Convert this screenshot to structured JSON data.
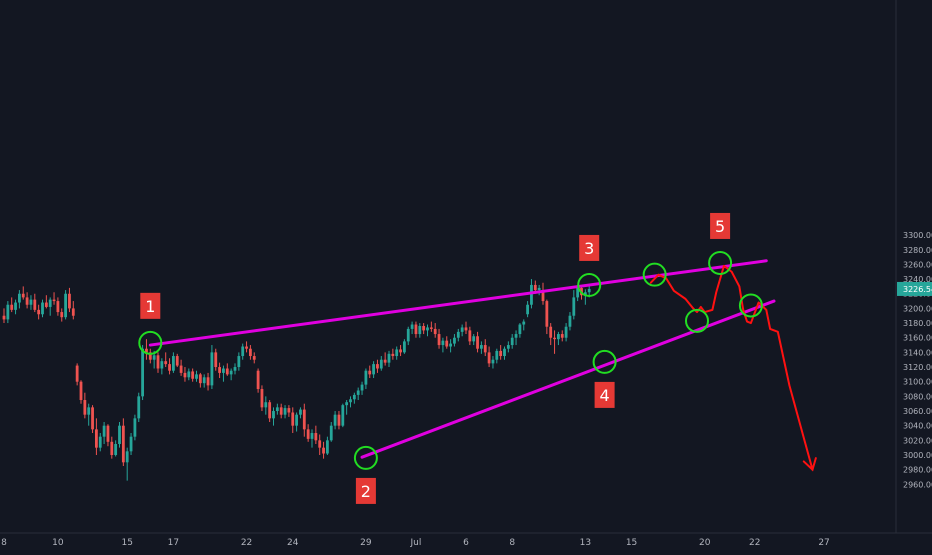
{
  "chart_data": {
    "type": "candlestick",
    "title": "",
    "xlabel": "",
    "ylabel": "",
    "ylim": [
      2950,
      3305
    ],
    "grid": false,
    "colors": {
      "background": "#131722",
      "up": "#26a69a",
      "down": "#ef5350",
      "trendline": "#e000e0",
      "projection": "#ff1111",
      "marker_ring": "#22dd22",
      "marker_box": "#e53935",
      "price_tag": "#26a69a",
      "axis_text": "#b2b5be"
    },
    "y_ticks": [
      2960,
      2980,
      3000,
      3020,
      3040,
      3060,
      3080,
      3100,
      3120,
      3140,
      3160,
      3180,
      3200,
      3220,
      3240,
      3260,
      3280,
      3300
    ],
    "y_tick_labels": [
      "2960.00",
      "2980.00",
      "3000.00",
      "3020.00",
      "3040.00",
      "3060.00",
      "3080.00",
      "3100.00",
      "3120.00",
      "3140.00",
      "3160.00",
      "3180.00",
      "3200.00",
      "3220.00",
      "3240.00",
      "3260.00",
      "3280.00",
      "3300.00"
    ],
    "x_ticks": [
      {
        "label": "8",
        "bar": 0
      },
      {
        "label": "10",
        "bar": 14
      },
      {
        "label": "15",
        "bar": 32
      },
      {
        "label": "17",
        "bar": 44
      },
      {
        "label": "22",
        "bar": 63
      },
      {
        "label": "24",
        "bar": 75
      },
      {
        "label": "29",
        "bar": 94
      },
      {
        "label": "Jul",
        "bar": 107
      },
      {
        "label": "6",
        "bar": 120
      },
      {
        "label": "8",
        "bar": 132
      },
      {
        "label": "13",
        "bar": 151
      },
      {
        "label": "15",
        "bar": 163
      },
      {
        "label": "20",
        "bar": 182
      },
      {
        "label": "22",
        "bar": 195
      },
      {
        "label": "27",
        "bar": 213
      }
    ],
    "last_price_label": "3226.54",
    "last_price": 3226.54,
    "candles": [
      [
        3190,
        3200,
        3180,
        3185
      ],
      [
        3185,
        3210,
        3180,
        3205
      ],
      [
        3205,
        3215,
        3195,
        3198
      ],
      [
        3198,
        3212,
        3192,
        3208
      ],
      [
        3208,
        3225,
        3200,
        3220
      ],
      [
        3220,
        3230,
        3212,
        3215
      ],
      [
        3215,
        3222,
        3200,
        3205
      ],
      [
        3205,
        3218,
        3198,
        3212
      ],
      [
        3212,
        3220,
        3195,
        3198
      ],
      [
        3198,
        3205,
        3185,
        3192
      ],
      [
        3192,
        3212,
        3188,
        3208
      ],
      [
        3208,
        3218,
        3200,
        3202
      ],
      [
        3202,
        3215,
        3190,
        3212
      ],
      [
        3212,
        3222,
        3205,
        3210
      ],
      [
        3210,
        3215,
        3190,
        3195
      ],
      [
        3195,
        3200,
        3182,
        3188
      ],
      [
        3188,
        3225,
        3185,
        3220
      ],
      [
        3220,
        3228,
        3195,
        3200
      ],
      [
        3200,
        3210,
        3185,
        3190
      ],
      [
        3122,
        3125,
        3095,
        3100
      ],
      [
        3100,
        3102,
        3070,
        3075
      ],
      [
        3075,
        3085,
        3050,
        3055
      ],
      [
        3055,
        3070,
        3040,
        3065
      ],
      [
        3065,
        3068,
        3030,
        3035
      ],
      [
        3035,
        3050,
        3000,
        3010
      ],
      [
        3010,
        3030,
        3005,
        3025
      ],
      [
        3025,
        3045,
        3015,
        3040
      ],
      [
        3040,
        3042,
        3012,
        3018
      ],
      [
        3018,
        3025,
        2995,
        3000
      ],
      [
        3000,
        3020,
        2998,
        3015
      ],
      [
        3015,
        3045,
        3010,
        3040
      ],
      [
        3040,
        3050,
        2985,
        2990
      ],
      [
        2990,
        3010,
        2965,
        3005
      ],
      [
        3005,
        3030,
        3000,
        3025
      ],
      [
        3025,
        3055,
        3020,
        3050
      ],
      [
        3050,
        3085,
        3045,
        3080
      ],
      [
        3080,
        3150,
        3075,
        3145
      ],
      [
        3145,
        3158,
        3130,
        3140
      ],
      [
        3140,
        3145,
        3125,
        3130
      ],
      [
        3130,
        3142,
        3118,
        3136
      ],
      [
        3136,
        3140,
        3112,
        3118
      ],
      [
        3118,
        3132,
        3110,
        3128
      ],
      [
        3128,
        3140,
        3120,
        3124
      ],
      [
        3124,
        3132,
        3110,
        3115
      ],
      [
        3115,
        3140,
        3112,
        3135
      ],
      [
        3135,
        3138,
        3120,
        3122
      ],
      [
        3122,
        3130,
        3108,
        3112
      ],
      [
        3112,
        3120,
        3100,
        3106
      ],
      [
        3106,
        3118,
        3102,
        3114
      ],
      [
        3114,
        3118,
        3100,
        3104
      ],
      [
        3104,
        3115,
        3100,
        3110
      ],
      [
        3110,
        3112,
        3092,
        3098
      ],
      [
        3098,
        3110,
        3092,
        3106
      ],
      [
        3106,
        3112,
        3088,
        3095
      ],
      [
        3095,
        3150,
        3090,
        3140
      ],
      [
        3140,
        3145,
        3115,
        3120
      ],
      [
        3120,
        3126,
        3105,
        3112
      ],
      [
        3112,
        3122,
        3100,
        3118
      ],
      [
        3118,
        3125,
        3108,
        3110
      ],
      [
        3110,
        3118,
        3102,
        3115
      ],
      [
        3115,
        3125,
        3110,
        3120
      ],
      [
        3120,
        3140,
        3115,
        3135
      ],
      [
        3135,
        3152,
        3130,
        3148
      ],
      [
        3148,
        3155,
        3140,
        3145
      ],
      [
        3145,
        3150,
        3130,
        3135
      ],
      [
        3135,
        3140,
        3125,
        3130
      ],
      [
        3115,
        3118,
        3085,
        3090
      ],
      [
        3090,
        3095,
        3060,
        3065
      ],
      [
        3065,
        3080,
        3055,
        3072
      ],
      [
        3072,
        3075,
        3045,
        3050
      ],
      [
        3050,
        3065,
        3040,
        3060
      ],
      [
        3060,
        3070,
        3055,
        3065
      ],
      [
        3065,
        3070,
        3050,
        3055
      ],
      [
        3055,
        3068,
        3050,
        3064
      ],
      [
        3064,
        3068,
        3052,
        3058
      ],
      [
        3058,
        3065,
        3030,
        3040
      ],
      [
        3040,
        3058,
        3032,
        3055
      ],
      [
        3055,
        3065,
        3050,
        3062
      ],
      [
        3062,
        3070,
        3025,
        3035
      ],
      [
        3035,
        3042,
        3018,
        3022
      ],
      [
        3022,
        3035,
        3010,
        3030
      ],
      [
        3030,
        3040,
        3015,
        3020
      ],
      [
        3020,
        3028,
        3000,
        3010
      ],
      [
        3010,
        3018,
        2995,
        3002
      ],
      [
        3002,
        3025,
        3000,
        3020
      ],
      [
        3020,
        3045,
        3018,
        3040
      ],
      [
        3040,
        3060,
        3035,
        3055
      ],
      [
        3055,
        3060,
        3035,
        3040
      ],
      [
        3040,
        3070,
        3038,
        3068
      ],
      [
        3068,
        3075,
        3055,
        3072
      ],
      [
        3072,
        3080,
        3065,
        3076
      ],
      [
        3076,
        3085,
        3070,
        3082
      ],
      [
        3082,
        3092,
        3075,
        3088
      ],
      [
        3088,
        3100,
        3082,
        3096
      ],
      [
        3096,
        3118,
        3090,
        3115
      ],
      [
        3115,
        3122,
        3105,
        3110
      ],
      [
        3110,
        3128,
        3105,
        3124
      ],
      [
        3124,
        3130,
        3112,
        3118
      ],
      [
        3118,
        3135,
        3115,
        3130
      ],
      [
        3130,
        3140,
        3122,
        3126
      ],
      [
        3126,
        3142,
        3120,
        3138
      ],
      [
        3138,
        3145,
        3130,
        3135
      ],
      [
        3135,
        3148,
        3130,
        3144
      ],
      [
        3144,
        3150,
        3135,
        3140
      ],
      [
        3140,
        3158,
        3138,
        3155
      ],
      [
        3155,
        3175,
        3150,
        3172
      ],
      [
        3172,
        3182,
        3165,
        3178
      ],
      [
        3178,
        3182,
        3160,
        3165
      ],
      [
        3165,
        3180,
        3160,
        3176
      ],
      [
        3176,
        3180,
        3165,
        3170
      ],
      [
        3170,
        3178,
        3162,
        3174
      ],
      [
        3174,
        3182,
        3168,
        3172
      ],
      [
        3172,
        3180,
        3160,
        3165
      ],
      [
        3165,
        3172,
        3145,
        3150
      ],
      [
        3150,
        3160,
        3140,
        3156
      ],
      [
        3156,
        3162,
        3145,
        3148
      ],
      [
        3148,
        3158,
        3140,
        3152
      ],
      [
        3152,
        3165,
        3148,
        3160
      ],
      [
        3160,
        3172,
        3155,
        3168
      ],
      [
        3168,
        3178,
        3162,
        3174
      ],
      [
        3174,
        3182,
        3165,
        3170
      ],
      [
        3170,
        3175,
        3150,
        3155
      ],
      [
        3155,
        3165,
        3150,
        3162
      ],
      [
        3162,
        3168,
        3140,
        3145
      ],
      [
        3145,
        3155,
        3138,
        3150
      ],
      [
        3150,
        3158,
        3135,
        3140
      ],
      [
        3140,
        3148,
        3120,
        3125
      ],
      [
        3125,
        3135,
        3118,
        3130
      ],
      [
        3130,
        3145,
        3125,
        3142
      ],
      [
        3142,
        3150,
        3130,
        3135
      ],
      [
        3135,
        3148,
        3130,
        3145
      ],
      [
        3145,
        3155,
        3140,
        3150
      ],
      [
        3150,
        3165,
        3145,
        3160
      ],
      [
        3160,
        3170,
        3150,
        3165
      ],
      [
        3165,
        3180,
        3160,
        3178
      ],
      [
        3178,
        3185,
        3170,
        3182
      ],
      [
        3192,
        3210,
        3188,
        3205
      ],
      [
        3205,
        3240,
        3200,
        3232
      ],
      [
        3232,
        3238,
        3220,
        3225
      ],
      [
        3225,
        3232,
        3218,
        3228
      ],
      [
        3225,
        3235,
        3205,
        3210
      ],
      [
        3210,
        3212,
        3165,
        3175
      ],
      [
        3175,
        3180,
        3150,
        3160
      ],
      [
        3160,
        3170,
        3138,
        3158
      ],
      [
        3158,
        3168,
        3150,
        3165
      ],
      [
        3165,
        3170,
        3155,
        3160
      ],
      [
        3160,
        3180,
        3155,
        3175
      ],
      [
        3175,
        3195,
        3170,
        3190
      ],
      [
        3190,
        3225,
        3185,
        3215
      ],
      [
        3215,
        3232,
        3210,
        3228
      ],
      [
        3228,
        3232,
        3212,
        3218
      ],
      [
        3218,
        3226,
        3205,
        3222
      ],
      [
        3222,
        3232,
        3215,
        3226.54
      ]
    ],
    "trendlines": [
      {
        "from": {
          "bar": 38,
          "value": 3150
        },
        "to": {
          "bar": 198,
          "value": 3265
        }
      },
      {
        "from": {
          "bar": 93,
          "value": 2997
        },
        "to": {
          "bar": 200,
          "value": 3210
        }
      }
    ],
    "projection_path": [
      {
        "bar": 168,
        "value": 3235
      },
      {
        "bar": 170,
        "value": 3246
      },
      {
        "bar": 172,
        "value": 3241
      },
      {
        "bar": 174,
        "value": 3224
      },
      {
        "bar": 177,
        "value": 3213
      },
      {
        "bar": 179,
        "value": 3200
      },
      {
        "bar": 180,
        "value": 3195
      },
      {
        "bar": 181,
        "value": 3202
      },
      {
        "bar": 182,
        "value": 3195
      },
      {
        "bar": 184,
        "value": 3198
      },
      {
        "bar": 185,
        "value": 3222
      },
      {
        "bar": 187,
        "value": 3258
      },
      {
        "bar": 189,
        "value": 3250
      },
      {
        "bar": 191,
        "value": 3230
      },
      {
        "bar": 192,
        "value": 3198
      },
      {
        "bar": 193,
        "value": 3182
      },
      {
        "bar": 194,
        "value": 3180
      },
      {
        "bar": 196,
        "value": 3208
      },
      {
        "bar": 198,
        "value": 3198
      },
      {
        "bar": 199,
        "value": 3172
      },
      {
        "bar": 201,
        "value": 3168
      },
      {
        "bar": 204,
        "value": 3095
      },
      {
        "bar": 210,
        "value": 2980
      }
    ],
    "points": [
      {
        "label": "1",
        "bar": 38,
        "value": 3153,
        "label_side": "above"
      },
      {
        "label": "2",
        "bar": 94,
        "value": 2996,
        "label_side": "below"
      },
      {
        "label": "3",
        "bar": 152,
        "value": 3232,
        "label_side": "above"
      },
      {
        "label": "4",
        "bar": 156,
        "value": 3127,
        "label_side": "below"
      },
      {
        "label": "",
        "bar": 169,
        "value": 3246,
        "label_side": "none"
      },
      {
        "label": "",
        "bar": 180,
        "value": 3183,
        "label_side": "none"
      },
      {
        "label": "5",
        "bar": 186,
        "value": 3262,
        "label_side": "above"
      },
      {
        "label": "",
        "bar": 194,
        "value": 3204,
        "label_side": "none"
      }
    ]
  }
}
